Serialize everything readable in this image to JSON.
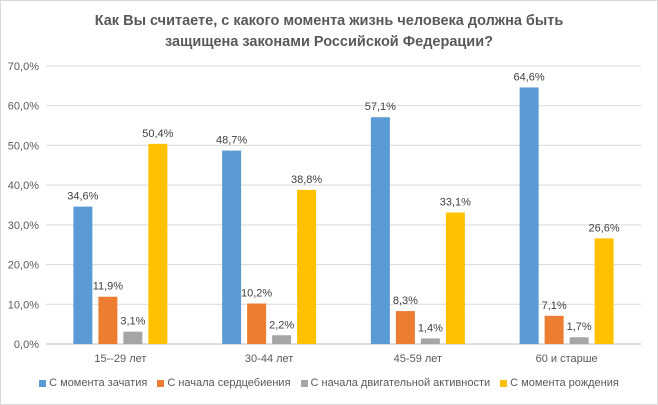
{
  "chart_data": {
    "type": "bar",
    "title_lines": [
      "Как Вы считаете, с какого момента жизнь человека должна быть",
      "защищена законами Российской Федерации?"
    ],
    "categories": [
      "15--29 лет",
      "30-44 лет",
      "45-59 лет",
      "60 и старше"
    ],
    "series": [
      {
        "name": "С момента зачатия",
        "color": "#5b9bd5",
        "values": [
          34.6,
          48.7,
          57.1,
          64.6
        ],
        "labels": [
          "34,6%",
          "48,7%",
          "57,1%",
          "64,6%"
        ]
      },
      {
        "name": "С начала сердцебиения",
        "color": "#ed7d31",
        "values": [
          11.9,
          10.2,
          8.3,
          7.1
        ],
        "labels": [
          "11,9%",
          "10,2%",
          "8,3%",
          "7,1%"
        ]
      },
      {
        "name": "С начала двигательной активности",
        "color": "#a5a5a5",
        "values": [
          3.1,
          2.2,
          1.4,
          1.7
        ],
        "labels": [
          "3,1%",
          "2,2%",
          "1,4%",
          "1,7%"
        ]
      },
      {
        "name": "С момента рождения",
        "color": "#ffc000",
        "values": [
          50.4,
          38.8,
          33.1,
          26.6
        ],
        "labels": [
          "50,4%",
          "38,8%",
          "33,1%",
          "26,6%"
        ]
      }
    ],
    "yticks": [
      0,
      10,
      20,
      30,
      40,
      50,
      60,
      70
    ],
    "ytick_labels": [
      "0,0%",
      "10,0%",
      "20,0%",
      "30,0%",
      "40,0%",
      "50,0%",
      "60,0%",
      "70,0%"
    ],
    "ylim": [
      0,
      70
    ],
    "grid": true,
    "legend_position": "bottom"
  }
}
